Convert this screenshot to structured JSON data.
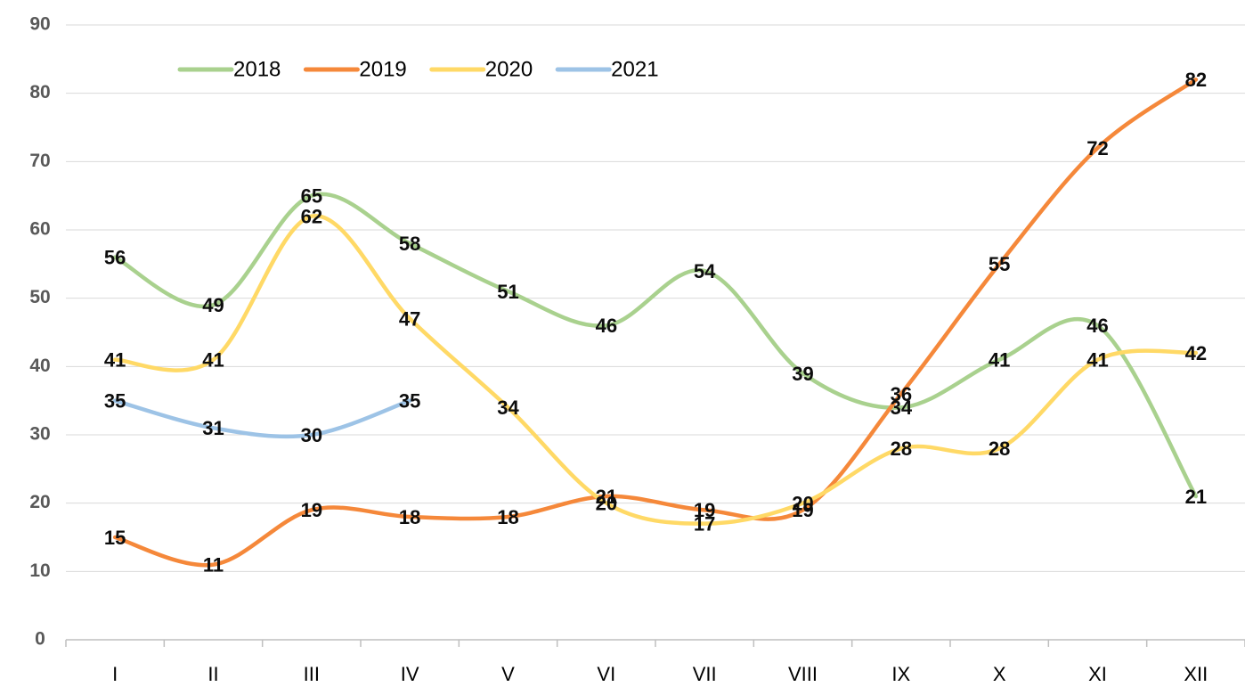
{
  "chart_data": {
    "type": "line",
    "categories": [
      "I",
      "II",
      "III",
      "IV",
      "V",
      "VI",
      "VII",
      "VIII",
      "IX",
      "X",
      "XI",
      "XII"
    ],
    "series": [
      {
        "name": "2018",
        "color": "#a9d18e",
        "values": [
          56,
          49,
          65,
          58,
          51,
          46,
          54,
          39,
          34,
          41,
          46,
          21
        ]
      },
      {
        "name": "2019",
        "color": "#f5883a",
        "values": [
          15,
          11,
          19,
          18,
          18,
          21,
          19,
          19,
          36,
          55,
          72,
          82
        ]
      },
      {
        "name": "2020",
        "color": "#ffd966",
        "values": [
          41,
          41,
          62,
          47,
          34,
          20,
          17,
          20,
          28,
          28,
          41,
          42
        ]
      },
      {
        "name": "2021",
        "color": "#9dc3e6",
        "values": [
          35,
          31,
          30,
          35,
          null,
          null,
          null,
          null,
          null,
          null,
          null,
          null
        ]
      }
    ],
    "ylim": [
      0,
      90
    ],
    "yticks": [
      0,
      10,
      20,
      30,
      40,
      50,
      60,
      70,
      80,
      90
    ],
    "grid": true,
    "legend": "top"
  }
}
